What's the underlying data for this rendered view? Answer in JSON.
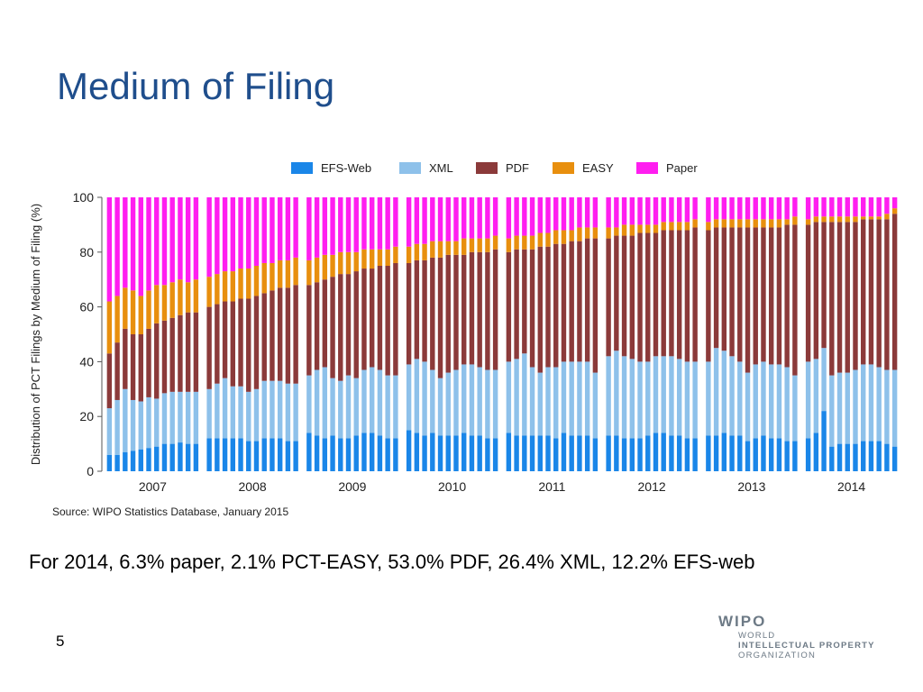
{
  "slide": {
    "title": "Medium of Filing",
    "source": "Source:  WIPO Statistics Database, January 2015",
    "summary": "For 2014, 6.3% paper, 2.1% PCT-EASY, 53.0% PDF, 26.4% XML, 12.2% EFS-web",
    "page_number": "5"
  },
  "logo": {
    "name": "WIPO",
    "line1": "WORLD",
    "line2": "INTELLECTUAL PROPERTY",
    "line3": "ORGANIZATION"
  },
  "chart_data": {
    "type": "bar",
    "stacked": true,
    "ylabel": "Distribution of PCT Filings by Medium of Filing (%)",
    "xlabel": "",
    "ylim": [
      0,
      100
    ],
    "yticks": [
      0,
      20,
      40,
      60,
      80,
      100
    ],
    "legend_position": "top",
    "groups": [
      "2007",
      "2008",
      "2009",
      "2010",
      "2011",
      "2012",
      "2013",
      "2014"
    ],
    "series": [
      {
        "name": "EFS-Web",
        "color": "#1a86e8"
      },
      {
        "name": "XML",
        "color": "#8ec1ea"
      },
      {
        "name": "PDF",
        "color": "#8b3a3a"
      },
      {
        "name": "EASY",
        "color": "#e88f0e"
      },
      {
        "name": "Paper",
        "color": "#ff1ef0"
      }
    ],
    "cumulative_tops": {
      "2007": {
        "efs": [
          6,
          6,
          7,
          7.5,
          8,
          8.5,
          9,
          10,
          10,
          10.5,
          10,
          10
        ],
        "xml": [
          23,
          26,
          30,
          26,
          25.5,
          27,
          26.5,
          28.5,
          29,
          29,
          29,
          29
        ],
        "pdf": [
          43,
          47,
          52,
          50,
          50,
          52,
          54,
          55,
          56,
          57,
          58,
          58
        ],
        "easy": [
          62,
          64,
          67,
          66,
          64,
          66,
          68,
          68,
          69,
          70,
          69,
          70
        ]
      },
      "2008": {
        "efs": [
          12,
          12,
          12,
          12,
          12,
          11,
          11,
          12,
          12,
          12,
          11,
          11
        ],
        "xml": [
          30,
          32,
          34,
          31,
          31,
          29,
          30,
          33,
          33,
          33,
          32,
          32
        ],
        "pdf": [
          60,
          61,
          62,
          62,
          63,
          63,
          64,
          65,
          66,
          67,
          67,
          68
        ],
        "easy": [
          71,
          72,
          73,
          73,
          74,
          74,
          75,
          76,
          76,
          77,
          77,
          78
        ]
      },
      "2009": {
        "efs": [
          14,
          13,
          12,
          13,
          12,
          12,
          13,
          14,
          14,
          13,
          12,
          12
        ],
        "xml": [
          35,
          37,
          38,
          34,
          33,
          35,
          34,
          37,
          38,
          37,
          35,
          35
        ],
        "pdf": [
          68,
          69,
          70,
          71,
          72,
          72,
          73,
          74,
          74,
          75,
          75,
          76
        ],
        "easy": [
          77,
          78,
          79,
          79,
          80,
          80,
          80,
          81,
          81,
          81,
          81,
          82
        ]
      },
      "2010": {
        "efs": [
          15,
          14,
          13,
          14,
          13,
          13,
          13,
          14,
          13,
          13,
          12,
          12
        ],
        "xml": [
          39,
          41,
          40,
          37,
          34,
          36,
          37,
          39,
          39,
          38,
          37,
          37
        ],
        "pdf": [
          76,
          77,
          77,
          78,
          78,
          79,
          79,
          79,
          80,
          80,
          80,
          81
        ],
        "easy": [
          82,
          83,
          83,
          84,
          84,
          84,
          84,
          85,
          85,
          85,
          85,
          86
        ]
      },
      "2011": {
        "efs": [
          14,
          13,
          13,
          13,
          13,
          13,
          12,
          14,
          13,
          13,
          13,
          12
        ],
        "xml": [
          40,
          41,
          43,
          38,
          36,
          38,
          38,
          40,
          40,
          40,
          40,
          36
        ],
        "pdf": [
          80,
          81,
          81,
          81,
          82,
          82,
          83,
          83,
          84,
          84,
          85,
          85
        ],
        "easy": [
          85,
          86,
          86,
          86,
          87,
          87,
          88,
          88,
          88,
          89,
          89,
          89
        ]
      },
      "2012": {
        "efs": [
          13,
          13,
          12,
          12,
          12,
          13,
          14,
          14,
          13,
          13,
          12,
          12
        ],
        "xml": [
          42,
          44,
          42,
          41,
          40,
          40,
          42,
          42,
          42,
          41,
          40,
          40
        ],
        "pdf": [
          85,
          86,
          86,
          86,
          87,
          87,
          87,
          88,
          88,
          88,
          88,
          89
        ],
        "easy": [
          89,
          89,
          90,
          90,
          90,
          90,
          90,
          91,
          91,
          91,
          91,
          92
        ]
      },
      "2013": {
        "efs": [
          13,
          13,
          14,
          13,
          13,
          11,
          12,
          13,
          12,
          12,
          11,
          11
        ],
        "xml": [
          40,
          45,
          44,
          42,
          40,
          36,
          39,
          40,
          39,
          39,
          38,
          35
        ],
        "pdf": [
          88,
          89,
          89,
          89,
          89,
          89,
          89,
          89,
          89,
          89,
          90,
          90
        ],
        "easy": [
          91,
          92,
          92,
          92,
          92,
          92,
          92,
          92,
          92,
          92,
          92,
          93
        ]
      },
      "2014": {
        "efs": [
          12,
          14,
          22,
          9,
          10,
          10,
          10,
          11,
          11,
          11,
          10,
          9
        ],
        "xml": [
          40,
          41,
          45,
          35,
          36,
          36,
          37,
          39,
          39,
          38,
          37,
          37
        ],
        "pdf": [
          90,
          91,
          91,
          91,
          91,
          91,
          91,
          92,
          92,
          92,
          92,
          94
        ],
        "easy": [
          92,
          93,
          93,
          93,
          93,
          93,
          93,
          93,
          93,
          93,
          94,
          96
        ]
      }
    }
  }
}
